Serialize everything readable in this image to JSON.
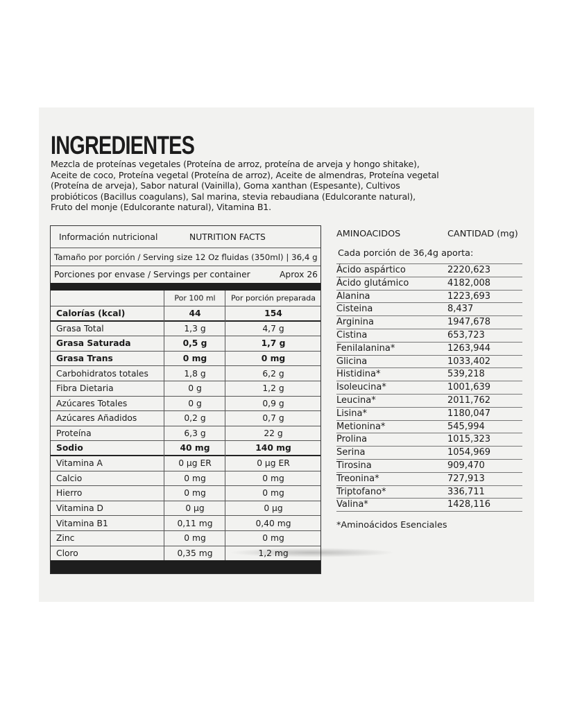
{
  "title": "INGREDIENTES",
  "ingredients": "Mezcla de proteínas vegetales (Proteína de arroz, proteína de arveja y hongo shitake), Aceite de coco, Proteína vegetal (Proteína de arroz), Aceite de almendras, Proteína vegetal (Proteína de arveja), Sabor natural (Vainilla), Goma xanthan (Espesante), Cultivos probióticos (Bacillus coagulans), Sal marina, stevia rebaudiana (Edulcorante natural), Fruto del monje (Edulcorante natural), Vitamina B1.",
  "nutrition": {
    "header_es": "Información nutricional",
    "header_en": "NUTRITION FACTS",
    "serving_size": "Tamaño por porción / Serving size 12 Oz fluidas (350ml) | 36,4 g",
    "servings_label": "Porciones por envase / Servings per container",
    "servings_value": "Aprox 26",
    "col_100ml": "Por 100 ml",
    "col_portion": "Por porción preparada",
    "rows": [
      {
        "name": "Calorías (kcal)",
        "per100": "44",
        "portion": "154",
        "bold": true
      },
      {
        "name": "Grasa Total",
        "per100": "1,3 g",
        "portion": "4,7 g",
        "bold": false
      },
      {
        "name": "Grasa Saturada",
        "per100": "0,5 g",
        "portion": "1,7 g",
        "bold": true
      },
      {
        "name": "Grasa Trans",
        "per100": "0 mg",
        "portion": "0 mg",
        "bold": true
      },
      {
        "name": "Carbohidratos totales",
        "per100": "1,8 g",
        "portion": "6,2 g",
        "bold": false
      },
      {
        "name": "Fibra Dietaria",
        "per100": "0 g",
        "portion": "1,2 g",
        "bold": false
      },
      {
        "name": "Azúcares Totales",
        "per100": "0 g",
        "portion": "0,9 g",
        "bold": false
      },
      {
        "name": "Azúcares Añadidos",
        "per100": "0,2 g",
        "portion": "0,7 g",
        "bold": false
      },
      {
        "name": "Proteína",
        "per100": "6,3 g",
        "portion": "22 g",
        "bold": false
      },
      {
        "name": "Sodio",
        "per100": "40 mg",
        "portion": "140 mg",
        "bold": true
      },
      {
        "name": "Vitamina A",
        "per100": "0 µg ER",
        "portion": "0 µg ER",
        "bold": false
      },
      {
        "name": "Calcio",
        "per100": "0 mg",
        "portion": "0 mg",
        "bold": false
      },
      {
        "name": "Hierro",
        "per100": "0 mg",
        "portion": "0 mg",
        "bold": false
      },
      {
        "name": "Vitamina D",
        "per100": "0 µg",
        "portion": "0 µg",
        "bold": false
      },
      {
        "name": "Vitamina B1",
        "per100": "0,11 mg",
        "portion": "0,40 mg",
        "bold": false
      },
      {
        "name": "Zinc",
        "per100": "0 mg",
        "portion": "0 mg",
        "bold": false
      },
      {
        "name": "Cloro",
        "per100": "0,35 mg",
        "portion": "1,2 mg",
        "bold": false
      }
    ]
  },
  "amino": {
    "col_name": "AMINOACIDOS",
    "col_amount": "CANTIDAD (mg)",
    "subtitle": "Cada porción de 36,4g aporta:",
    "rows": [
      {
        "name": "Ácido aspártico",
        "value": "2220,623"
      },
      {
        "name": "Ácido glutámico",
        "value": "4182,008"
      },
      {
        "name": "Alanina",
        "value": "1223,693"
      },
      {
        "name": "Cisteina",
        "value": "8,437"
      },
      {
        "name": "Arginina",
        "value": "1947,678"
      },
      {
        "name": "Cistina",
        "value": "653,723"
      },
      {
        "name": "Fenilalanina*",
        "value": "1263,944"
      },
      {
        "name": "Glicina",
        "value": "1033,402"
      },
      {
        "name": "Histidina*",
        "value": "539,218"
      },
      {
        "name": "Isoleucina*",
        "value": "1001,639"
      },
      {
        "name": "Leucina*",
        "value": "2011,762"
      },
      {
        "name": "Lisina*",
        "value": "1180,047"
      },
      {
        "name": "Metionina*",
        "value": "545,994"
      },
      {
        "name": "Prolina",
        "value": "1015,323"
      },
      {
        "name": "Serina",
        "value": "1054,969"
      },
      {
        "name": "Tirosina",
        "value": "909,470"
      },
      {
        "name": "Treonina*",
        "value": "727,913"
      },
      {
        "name": "Triptofano*",
        "value": "336,711"
      },
      {
        "name": "Valina*",
        "value": "1428,116"
      }
    ],
    "footnote": "*Aminoácidos Esenciales"
  }
}
